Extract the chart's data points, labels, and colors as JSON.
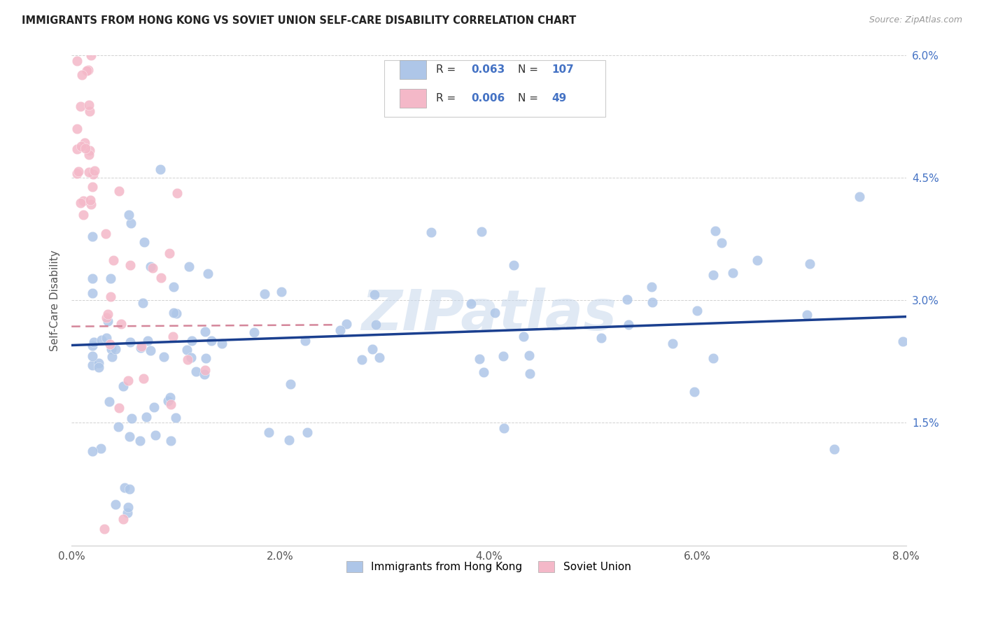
{
  "title": "IMMIGRANTS FROM HONG KONG VS SOVIET UNION SELF-CARE DISABILITY CORRELATION CHART",
  "source": "Source: ZipAtlas.com",
  "ylabel": "Self-Care Disability",
  "xlim": [
    0.0,
    0.08
  ],
  "ylim": [
    0.0,
    0.06
  ],
  "xtick_positions": [
    0.0,
    0.01,
    0.02,
    0.03,
    0.04,
    0.05,
    0.06,
    0.07,
    0.08
  ],
  "xtick_labels": [
    "0.0%",
    "",
    "2.0%",
    "",
    "4.0%",
    "",
    "6.0%",
    "",
    "8.0%"
  ],
  "ytick_positions": [
    0.0,
    0.015,
    0.03,
    0.045,
    0.06
  ],
  "ytick_labels": [
    "",
    "1.5%",
    "3.0%",
    "4.5%",
    "6.0%"
  ],
  "hk_R": 0.063,
  "hk_N": 107,
  "su_R": 0.006,
  "su_N": 49,
  "hk_color": "#aec6e8",
  "su_color": "#f4b8c8",
  "hk_line_color": "#1a3f8f",
  "su_line_color": "#d4869a",
  "watermark": "ZIPatlas",
  "watermark_color": "#c8d8ec",
  "legend_labels": [
    "Immigrants from Hong Kong",
    "Soviet Union"
  ],
  "hk_line_x0": 0.0,
  "hk_line_y0": 0.0245,
  "hk_line_x1": 0.08,
  "hk_line_y1": 0.028,
  "su_line_x0": 0.0,
  "su_line_y0": 0.0268,
  "su_line_x1": 0.025,
  "su_line_y1": 0.027
}
